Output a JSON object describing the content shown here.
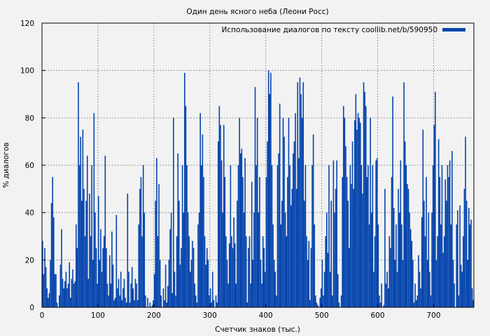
{
  "chart_data": {
    "type": "bar",
    "title": "Один день ясного неба (Леони Росс)",
    "xlabel": "Счетчик знаков (тыс.)",
    "ylabel": "% диалогов",
    "xlim": [
      0,
      772
    ],
    "ylim": [
      0,
      120
    ],
    "xticks": [
      "0",
      "100",
      "200",
      "300",
      "400",
      "500",
      "600",
      "700"
    ],
    "yticks": [
      "0",
      "20",
      "40",
      "60",
      "80",
      "100",
      "120"
    ],
    "grid": true,
    "legend_position": "top-right",
    "bin_width": 2,
    "series": [
      {
        "name": "Использование диалогов по тексту coollib.net/b/590950",
        "color": "#0645ad",
        "values": [
          28,
          14,
          25,
          17,
          8,
          4,
          6,
          20,
          44,
          55,
          38,
          14,
          14,
          2,
          0,
          5,
          18,
          33,
          12,
          8,
          11,
          15,
          8,
          10,
          19,
          4,
          12,
          16,
          10,
          11,
          35,
          25,
          95,
          60,
          72,
          45,
          75,
          50,
          30,
          45,
          64,
          12,
          48,
          30,
          60,
          20,
          82,
          40,
          25,
          10,
          47,
          20,
          33,
          15,
          25,
          30,
          64,
          25,
          10,
          5,
          22,
          10,
          32,
          18,
          3,
          4,
          39,
          8,
          12,
          5,
          15,
          3,
          8,
          12,
          4,
          2,
          48,
          15,
          2,
          10,
          17,
          8,
          3,
          12,
          10,
          3,
          35,
          50,
          55,
          30,
          60,
          40,
          5,
          0,
          4,
          0,
          2,
          0,
          1,
          3,
          14,
          45,
          63,
          30,
          52,
          20,
          5,
          0,
          8,
          3,
          18,
          2,
          9,
          20,
          33,
          40,
          6,
          80,
          15,
          5,
          30,
          65,
          45,
          18,
          25,
          60,
          40,
          99,
          85,
          60,
          40,
          30,
          15,
          20,
          28,
          25,
          10,
          5,
          2,
          35,
          40,
          82,
          60,
          73,
          55,
          30,
          18,
          25,
          20,
          5,
          8,
          2,
          15,
          3,
          0,
          5,
          2,
          70,
          85,
          77,
          62,
          40,
          77,
          55,
          30,
          20,
          10,
          27,
          60,
          30,
          25,
          38,
          27,
          10,
          45,
          60,
          80,
          65,
          67,
          55,
          40,
          63,
          30,
          2,
          25,
          30,
          10,
          53,
          20,
          40,
          93,
          60,
          80,
          40,
          55,
          20,
          10,
          30,
          25,
          15,
          55,
          70,
          100,
          90,
          99,
          60,
          35,
          20,
          15,
          5,
          60,
          65,
          86,
          35,
          45,
          80,
          72,
          40,
          30,
          55,
          80,
          60,
          43,
          50,
          65,
          70,
          82,
          50,
          95,
          63,
          97,
          90,
          80,
          95,
          45,
          60,
          30,
          20,
          28,
          3,
          25,
          60,
          73,
          35,
          5,
          2,
          1,
          0,
          4,
          8,
          20,
          5,
          15,
          30,
          40,
          23,
          60,
          15,
          45,
          5,
          62,
          40,
          50,
          62,
          14,
          2,
          0,
          5,
          55,
          85,
          80,
          68,
          55,
          45,
          25,
          60,
          52,
          70,
          50,
          79,
          90,
          75,
          82,
          80,
          78,
          60,
          48,
          95,
          91,
          85,
          55,
          60,
          35,
          80,
          40,
          60,
          15,
          30,
          62,
          63,
          35,
          5,
          2,
          10,
          0,
          1,
          50,
          10,
          15,
          8,
          30,
          25,
          55,
          89,
          42,
          20,
          35,
          15,
          50,
          40,
          62,
          35,
          20,
          95,
          70,
          60,
          52,
          50,
          40,
          33,
          28,
          20,
          2,
          10,
          3,
          5,
          22,
          15,
          8,
          38,
          75,
          45,
          30,
          55,
          20,
          40,
          15,
          5,
          40,
          60,
          77,
          91,
          20,
          30,
          71,
          55,
          35,
          60,
          23,
          30,
          54,
          45,
          60,
          55,
          62,
          35,
          66,
          20,
          10,
          0,
          35,
          41,
          5,
          43,
          18,
          15,
          30,
          50,
          72,
          45,
          20,
          42,
          35,
          37,
          8,
          3,
          3,
          0
        ]
      }
    ]
  }
}
